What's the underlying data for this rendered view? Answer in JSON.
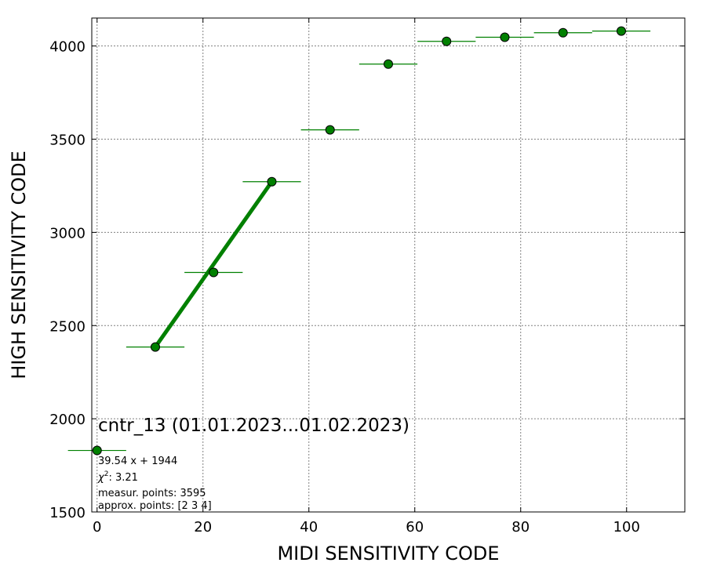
{
  "colors": {
    "series": "#008000",
    "marker_edge": "#000000",
    "grid": "#808080"
  },
  "chart_data": {
    "type": "scatter",
    "title": "cntr_13 (01.01.2023...01.02.2023)",
    "xlabel": "MIDI SENSITIVITY CODE",
    "ylabel": "HIGH SENSITIVITY CODE",
    "xlim": [
      -1,
      111
    ],
    "ylim": [
      1500,
      4150
    ],
    "xticks": [
      0,
      20,
      40,
      60,
      80,
      100
    ],
    "yticks": [
      1500,
      2000,
      2500,
      3000,
      3500,
      4000
    ],
    "grid": true,
    "points": {
      "x": [
        0,
        11,
        22,
        33,
        44,
        55,
        66,
        77,
        88,
        99
      ],
      "y": [
        1830,
        2385,
        2785,
        3272,
        3550,
        3903,
        4025,
        4047,
        4071,
        4080
      ],
      "xerr": 5.5
    },
    "fit": {
      "slope": 39.54,
      "intercept": 1944,
      "x_range": [
        11,
        33
      ],
      "equation_text": "39.54 x + 1944"
    },
    "annotations": {
      "chi2_text": ": 3.21",
      "measured_text": "measur. points: 3595",
      "approx_text": "approx. points: [2 3 4]"
    }
  }
}
